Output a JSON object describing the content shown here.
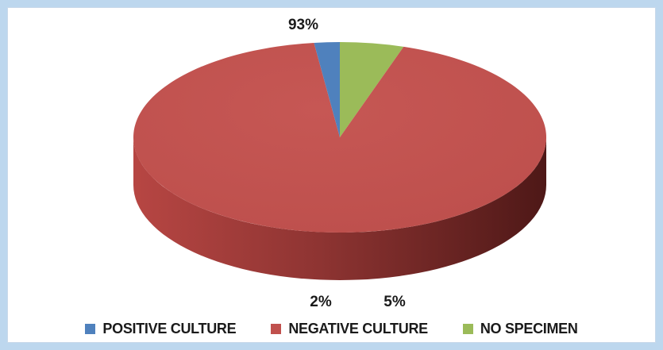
{
  "chart_data": {
    "type": "pie",
    "style": "3d",
    "categories": [
      "POSITIVE CULTURE",
      "NEGATIVE CULTURE",
      "NO SPECIMEN"
    ],
    "values": [
      2,
      93,
      5
    ],
    "data_labels": [
      "2%",
      "93%",
      "5%"
    ],
    "colors": [
      "#4f81bd",
      "#c0504d",
      "#9bbb59"
    ],
    "legend_position": "bottom",
    "title": ""
  }
}
